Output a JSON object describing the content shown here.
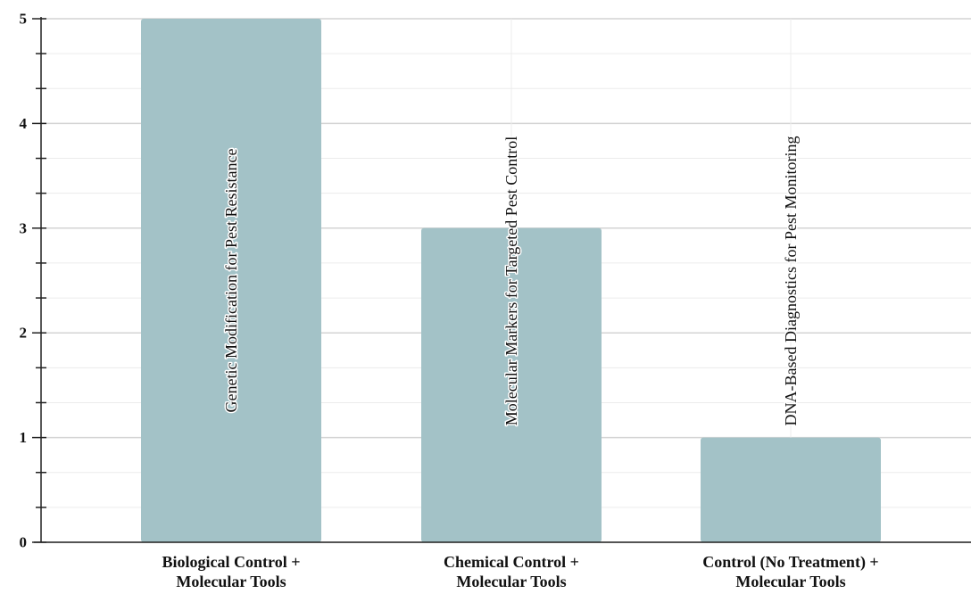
{
  "chart_data": {
    "type": "bar",
    "title": "",
    "xlabel": "",
    "ylabel": "",
    "categories": [
      [
        "Biological Control +",
        "Molecular Tools"
      ],
      [
        "Chemical Control +",
        "Molecular Tools"
      ],
      [
        "Control (No Treatment) +",
        "Molecular Tools"
      ]
    ],
    "values": [
      5,
      3,
      1
    ],
    "bar_labels": [
      "Genetic Modification for Pest Resistance",
      "Molecular Markers for Targeted Pest Control",
      "DNA-Based Diagnostics for Pest Monitoring"
    ],
    "ylim": [
      0,
      5
    ],
    "yticks": [
      0,
      1,
      2,
      3,
      4,
      5
    ],
    "grid": true,
    "legend": "none",
    "colors": {
      "bar": "#a3c2c7",
      "grid_major": "#d4d4d4",
      "grid_minor": "#ececec",
      "axis": "#222222"
    }
  }
}
